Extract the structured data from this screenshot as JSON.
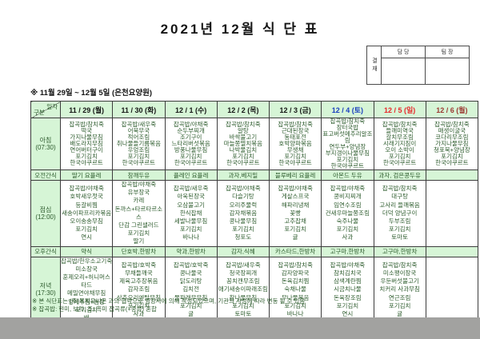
{
  "title": "2021년 12월 식 단 표",
  "subtitle": "※  11월 29일  ~  12월 5일  (은천요양원)",
  "approval": {
    "label": "결재",
    "columns": [
      "담 당",
      "팀 장"
    ]
  },
  "colors": {
    "cell_green_bg": "#d6f5d6",
    "menu_text_green": "#2e5c2e",
    "saturday_blue": "#1a3fbf",
    "sunday_red": "#e8262a",
    "next_monday_dark_red": "#9c3a33",
    "page_gray_strip": "#a2a2a0"
  },
  "table": {
    "corner": {
      "top": "일자",
      "bottom": "구분"
    },
    "dates": [
      {
        "label": "11 / 29 (월)",
        "color": "#151515"
      },
      {
        "label": "11 / 30 (화)",
        "color": "#151515"
      },
      {
        "label": "12 / 1 (수)",
        "color": "#151515"
      },
      {
        "label": "12 / 2 (목)",
        "color": "#151515"
      },
      {
        "label": "12 / 3 (금)",
        "color": "#151515"
      },
      {
        "label": "12 / 4 (토)",
        "color": "#1a3fbf"
      },
      {
        "label": "12 / 5 (일)",
        "color": "#e8262a"
      },
      {
        "label": "12 / 6 (월)",
        "color": "#9c3a33"
      }
    ],
    "rows": [
      {
        "category": "아침",
        "time": "(07:30)",
        "kind": "meal",
        "compact": true,
        "menus": [
          [
            "잡곡밥/참치죽",
            "떡국",
            "가지나물무침",
            "배도라지무침",
            "연어버터구이",
            "포기김치",
            "한국야쿠르트"
          ],
          [
            "잡곡밥/새우죽",
            "어묵무국",
            "적어조림",
            "취나물들기름볶음",
            "우엉조림",
            "포기김치",
            "한국야쿠르트"
          ],
          [
            "잡곡밥/야채죽",
            "순두부찌개",
            "조기구이",
            "느타리버섯볶음",
            "방풍나물무침",
            "포기김치",
            "한국야쿠르트"
          ],
          [
            "잡곡밥/참치죽",
            "알탕",
            "바싹불고기",
            "마늘쫑멸치볶음",
            "나박물김치",
            "포기김치",
            "한국야쿠르트"
          ],
          [
            "잡곡밥/참치죽",
            "근대된장국",
            "동태포전",
            "호박양파볶음",
            "무생채",
            "포기김치",
            "한국야쿠르트"
          ],
          [
            "잡곡밥/참치죽",
            "장터국밥",
            "표고버섯메추리알조림",
            "연두부+양념장",
            "부지갱이나물무침",
            "포기김치",
            "한국야쿠르트"
          ],
          [
            "잡곡밥/참치죽",
            "들깨미역국",
            "갈치무조림",
            "시래기지짐이",
            "오이 소박이",
            "포기김치",
            "한국야쿠르트"
          ],
          [
            "잡곡밥/참치죽",
            "매생이굴국",
            "코다리무조림",
            "가지나물무침",
            "청포묵+양념장",
            "포기김치",
            "한국야쿠르트"
          ]
        ]
      },
      {
        "category": "오전간식",
        "time": "",
        "kind": "snack",
        "items": [
          "딸기 요플레",
          "참깨두유",
          "플레인 요플레",
          "과자,베지밀",
          "블루베리 요플레",
          "아몬드 두유",
          "과자, 검은콩두유",
          ""
        ]
      },
      {
        "category": "점심",
        "time": "(12:00)",
        "kind": "meal",
        "menus": [
          [
            "잡곡밥/야채죽",
            "호박새우젓국",
            "등갈비찜",
            "새송이파프리카볶음",
            "오이송송무침",
            "포기김치",
            "연시"
          ],
          [
            "잡곡밥/야채죽",
            "유부장국",
            "카레",
            "돈까스+타르타르소스",
            "단감 그린샐러드",
            "포기김치",
            "딸기"
          ],
          [
            "잡곡밥/새우죽",
            "아욱된장국",
            "오삼불고기",
            "한식잡채",
            "세발나물무침",
            "포기김치",
            "바나나"
          ],
          [
            "잡곡밥/야채죽",
            "다슬기탕",
            "오리주물럭",
            "감자채볶음",
            "콩나물무침",
            "포기김치",
            "청포도"
          ],
          [
            "잡곡밥/야채죽",
            "게살스프국",
            "해파리냉채",
            "꽃빵",
            "고추잡채",
            "포기김치",
            "귤"
          ],
          [
            "잡곡밥/야채죽",
            "콩비지찌개",
            "임연수조림",
            "건새우마늘쫑조림",
            "숙주나물",
            "포기김치",
            "사과"
          ],
          [
            "잡곡밥/참치죽",
            "대구탕",
            "고사리 들깨볶음",
            "더덕 양념구이",
            "두부조림",
            "포기김치",
            "토마토"
          ],
          []
        ]
      },
      {
        "category": "오후간식",
        "time": "",
        "kind": "snack",
        "items": [
          "약식",
          "단호박,한방차",
          "약과,한방차",
          "감자,식혜",
          "카스타드,한방차",
          "고구마,한방차",
          "고구마,한방차",
          ""
        ]
      },
      {
        "category": "저녁",
        "time": "(17:30)",
        "kind": "meal",
        "menus": [
          [
            "잡곡밥/한우소고기죽",
            "미소장국",
            "훈제오리+허니머스타드",
            "메밀면야채무침",
            "양배추찜+쌈장",
            "포기김치",
            "배"
          ],
          [
            "잡곡밥/호박죽",
            "무채들깨국",
            "제육고추장볶음",
            "감자조림",
            "상추오리엔탈무침",
            "포기김치",
            "사과"
          ],
          [
            "잡곡밥/호박죽",
            "콩나물국",
            "닭도리탕",
            "김치전",
            "물파래무무침",
            "포기김치",
            "귤"
          ],
          [
            "잡곡밥/새우죽",
            "청국장찌개",
            "꽁치캔무조림",
            "애기새송이파래조림",
            "참나물무침",
            "포기김치",
            "토마토"
          ],
          [
            "잡곡밥/참치죽",
            "감자양파국",
            "돈육김치찜",
            "숙채나물",
            "무나물볶음",
            "포기김치",
            "바나나"
          ],
          [
            "잡곡밥/야채죽",
            "참치김치국",
            "삼색계란찜",
            "시금치나물",
            "돈육장조림",
            "포기김치",
            "연시"
          ],
          [
            "잡곡밥/참치죽",
            "미소팽이장국",
            "우둔버섯불고기",
            "치커리 사과무침",
            "연근조림",
            "포기김치",
            "귤"
          ],
          []
        ]
      }
    ]
  },
  "footnotes": [
    "※ 본 식단표는 (주)복지유니온 과의 협약으로 영양사에 의해 작성되었으며, 기관의 사정에 따라 변동 될 수 있음",
    "※ 잡곡밥: 현미, 보리, 조, 흑미 잡곡류(+콩류) 혼합"
  ]
}
